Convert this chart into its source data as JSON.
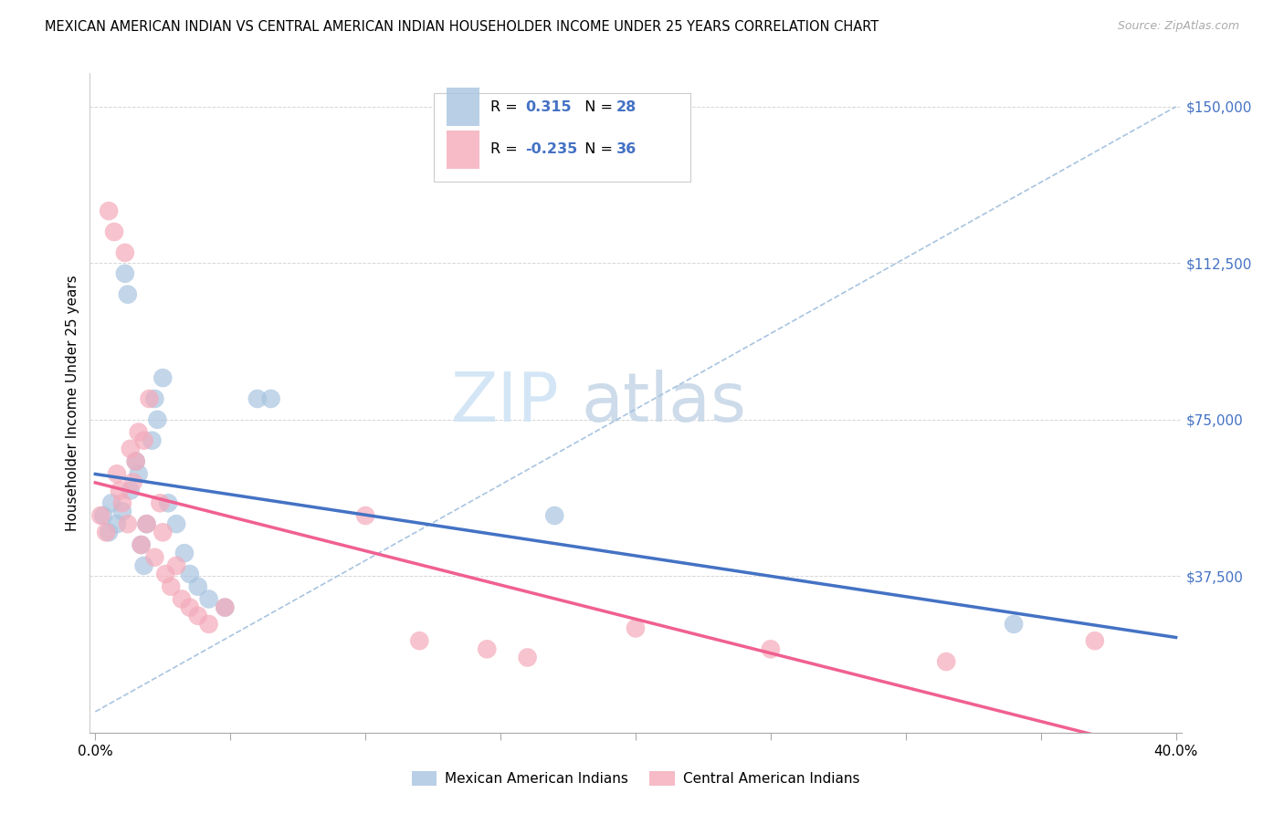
{
  "title": "MEXICAN AMERICAN INDIAN VS CENTRAL AMERICAN INDIAN HOUSEHOLDER INCOME UNDER 25 YEARS CORRELATION CHART",
  "source": "Source: ZipAtlas.com",
  "ylabel": "Householder Income Under 25 years",
  "yticks": [
    0,
    37500,
    75000,
    112500,
    150000
  ],
  "ytick_labels": [
    "",
    "$37,500",
    "$75,000",
    "$112,500",
    "$150,000"
  ],
  "xticks": [
    0.0,
    0.05,
    0.1,
    0.15,
    0.2,
    0.25,
    0.3,
    0.35,
    0.4
  ],
  "xlim": [
    -0.002,
    0.402
  ],
  "ylim": [
    0,
    158000
  ],
  "r_blue": "0.315",
  "n_blue": "28",
  "r_pink": "-0.235",
  "n_pink": "36",
  "legend_entries": [
    "Mexican American Indians",
    "Central American Indians"
  ],
  "watermark_zip": "ZIP",
  "watermark_atlas": "atlas",
  "blue_color": "#A8C4E0",
  "pink_color": "#F4AABA",
  "blue_line_color": "#4472C4",
  "pink_line_color": "#F06090",
  "dashed_line_color": "#A8C4E0",
  "blue_scatter_x": [
    0.003,
    0.005,
    0.006,
    0.008,
    0.01,
    0.011,
    0.012,
    0.013,
    0.015,
    0.016,
    0.017,
    0.018,
    0.019,
    0.021,
    0.022,
    0.023,
    0.025,
    0.027,
    0.03,
    0.033,
    0.035,
    0.038,
    0.042,
    0.048,
    0.06,
    0.065,
    0.17,
    0.34
  ],
  "blue_scatter_y": [
    52000,
    48000,
    55000,
    50000,
    53000,
    110000,
    105000,
    58000,
    65000,
    62000,
    45000,
    40000,
    50000,
    70000,
    80000,
    75000,
    85000,
    55000,
    50000,
    43000,
    38000,
    35000,
    32000,
    30000,
    80000,
    80000,
    52000,
    26000
  ],
  "pink_scatter_x": [
    0.002,
    0.004,
    0.005,
    0.007,
    0.008,
    0.009,
    0.01,
    0.011,
    0.012,
    0.013,
    0.014,
    0.015,
    0.016,
    0.017,
    0.018,
    0.019,
    0.02,
    0.022,
    0.024,
    0.025,
    0.026,
    0.028,
    0.03,
    0.032,
    0.035,
    0.038,
    0.042,
    0.048,
    0.1,
    0.12,
    0.145,
    0.16,
    0.2,
    0.25,
    0.315,
    0.37
  ],
  "pink_scatter_y": [
    52000,
    48000,
    125000,
    120000,
    62000,
    58000,
    55000,
    115000,
    50000,
    68000,
    60000,
    65000,
    72000,
    45000,
    70000,
    50000,
    80000,
    42000,
    55000,
    48000,
    38000,
    35000,
    40000,
    32000,
    30000,
    28000,
    26000,
    30000,
    52000,
    22000,
    20000,
    18000,
    25000,
    20000,
    17000,
    22000
  ]
}
